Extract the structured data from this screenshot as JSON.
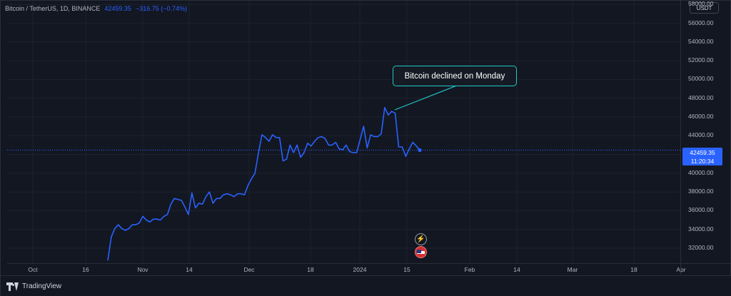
{
  "legend": {
    "symbol": "Bitcoin / TetherUS, 1D, BINANCE",
    "last_price": "42459.35",
    "change": "−316.75 (−0.74%)"
  },
  "currency_button": "USDT",
  "last_price_label": {
    "price": "42459.35",
    "countdown": "11:20:34"
  },
  "annotation": "Bitcoin declined on Monday",
  "events": {
    "bolt_icon": "⚡"
  },
  "footer": {
    "brand": "TradingView"
  },
  "colors": {
    "background": "#131722",
    "line": "#2962ff",
    "annotation_border": "#1fc7c6",
    "grid": "#1e222d"
  },
  "chart_data": {
    "type": "line",
    "ylim": [
      30400,
      58400
    ],
    "y_ticks": [
      "58000.00",
      "56000.00",
      "54000.00",
      "52000.00",
      "50000.00",
      "48000.00",
      "46000.00",
      "44000.00",
      "42000.00",
      "40000.00",
      "38000.00",
      "36000.00",
      "34000.00",
      "32000.00"
    ],
    "x_ticks": [
      "Oct",
      "16",
      "Nov",
      "14",
      "Dec",
      "18",
      "2024",
      "15",
      "Feb",
      "14",
      "Mar",
      "18",
      "Apr"
    ],
    "last_value": 42459.35,
    "series": [
      {
        "values": [
          30700,
          33200,
          34100,
          34500,
          34100,
          33900,
          34100,
          34500,
          34500,
          34700,
          35400,
          35000,
          34800,
          35100,
          35100,
          35000,
          35400,
          35600,
          36700,
          37300,
          37200,
          37100,
          36400,
          35600,
          37900,
          36300,
          36800,
          36700,
          37500,
          38000,
          36800,
          37300,
          37300,
          37700,
          37800,
          37700,
          37500,
          37800,
          37800,
          37700,
          38700,
          39400,
          40000,
          42200,
          44100,
          43800,
          43400,
          44100,
          43800,
          43800,
          41300,
          41500,
          43000,
          42200,
          43000,
          41700,
          42200,
          43200,
          42900,
          43400,
          43800,
          43900,
          43700,
          43000,
          43000,
          43300,
          42600,
          42500,
          43000,
          42300,
          42200,
          42200,
          43600,
          45000,
          42700,
          44100,
          43900,
          43900,
          44200,
          47000,
          46200,
          46600,
          46400,
          42800,
          42800,
          41800,
          42600,
          43300,
          42900,
          42459.35
        ]
      }
    ]
  }
}
